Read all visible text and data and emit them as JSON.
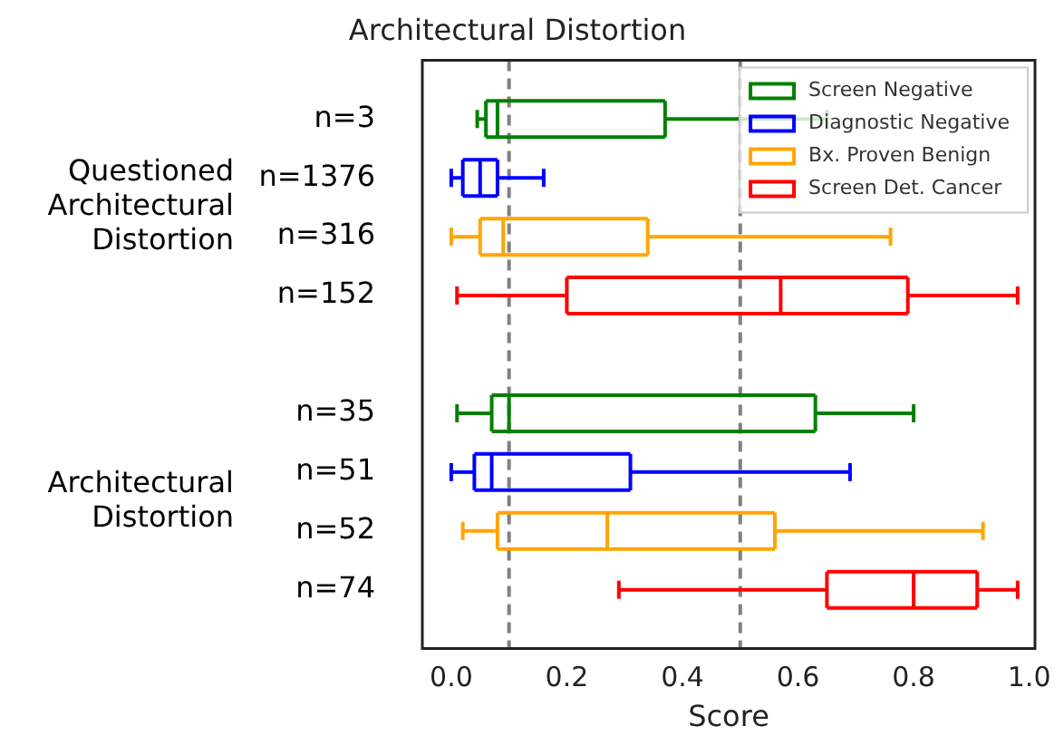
{
  "chart_data": {
    "type": "box",
    "orientation": "horizontal",
    "title": "Architectural Distortion",
    "xlabel": "Score",
    "categories": [
      "n=3",
      "n=1376",
      "n=316",
      "n=152",
      null,
      "n=35",
      "n=51",
      "n=52",
      "n=74"
    ],
    "series": [
      {
        "name": "Screen Negative",
        "color": "#008000",
        "boxes": [
          {
            "low": 0.045,
            "q1": 0.06,
            "median": 0.08,
            "q3": 0.37,
            "high": 0.65
          },
          null,
          null,
          null,
          null,
          {
            "low": 0.01,
            "q1": 0.07,
            "median": 0.1,
            "q3": 0.63,
            "high": 0.8
          },
          null,
          null,
          null
        ]
      },
      {
        "name": "Diagnostic Negative",
        "color": "#0000ff",
        "boxes": [
          null,
          {
            "low": 0.0,
            "q1": 0.02,
            "median": 0.05,
            "q3": 0.08,
            "high": 0.16
          },
          null,
          null,
          null,
          null,
          {
            "low": 0.0,
            "q1": 0.04,
            "median": 0.07,
            "q3": 0.31,
            "high": 0.69
          },
          null,
          null
        ]
      },
      {
        "name": "Bx. Proven Benign",
        "color": "#ffa500",
        "boxes": [
          null,
          null,
          {
            "low": 0.0,
            "q1": 0.05,
            "median": 0.09,
            "q3": 0.34,
            "high": 0.76
          },
          null,
          null,
          null,
          null,
          {
            "low": 0.02,
            "q1": 0.08,
            "median": 0.27,
            "q3": 0.56,
            "high": 0.92
          },
          null
        ]
      },
      {
        "name": "Screen Det. Cancer",
        "color": "#ff0000",
        "boxes": [
          null,
          null,
          null,
          {
            "low": 0.01,
            "q1": 0.2,
            "median": 0.57,
            "q3": 0.79,
            "high": 0.98
          },
          null,
          null,
          null,
          null,
          {
            "low": 0.29,
            "q1": 0.65,
            "median": 0.8,
            "q3": 0.91,
            "high": 0.98
          }
        ]
      }
    ],
    "xlim": [
      -0.05,
      1.01
    ],
    "xticks": [
      {
        "value": 0,
        "label": "0.0"
      },
      {
        "value": 0.2,
        "label": "0.2"
      },
      {
        "value": 0.4,
        "label": "0.4"
      },
      {
        "value": 0.6,
        "label": "0.6"
      },
      {
        "value": 0.8,
        "label": "0.8"
      },
      {
        "value": 1,
        "label": "1.0"
      }
    ],
    "ref_lines": [
      {
        "axis": "x",
        "value": 0.1,
        "color": "#808080",
        "line_style": "dashed"
      },
      {
        "axis": "x",
        "value": 0.5,
        "color": "#808080",
        "line_style": "dashed"
      }
    ],
    "annotations": [
      "Questioned Architectural Distortion",
      "Architectural Distortion"
    ],
    "legend": "top right",
    "grid": false
  }
}
